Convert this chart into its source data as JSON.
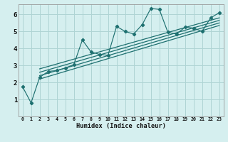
{
  "title": "",
  "xlabel": "Humidex (Indice chaleur)",
  "ylabel": "",
  "bg_color": "#d5efef",
  "grid_color": "#aed4d4",
  "line_color": "#1e7070",
  "xlim": [
    -0.5,
    23.5
  ],
  "ylim": [
    0,
    6.6
  ],
  "xtick_vals": [
    0,
    1,
    2,
    3,
    4,
    5,
    6,
    7,
    8,
    9,
    10,
    11,
    12,
    13,
    14,
    15,
    16,
    17,
    18,
    19,
    20,
    21,
    22,
    23
  ],
  "xtick_labels": [
    "0",
    "1",
    "2",
    "3",
    "4",
    "5",
    "6",
    "7",
    "8",
    "9",
    "10",
    "11",
    "12",
    "13",
    "14",
    "15",
    "16",
    "17",
    "18",
    "19",
    "20",
    "21",
    "22",
    "23"
  ],
  "ytick_vals": [
    1,
    2,
    3,
    4,
    5,
    6
  ],
  "ytick_labels": [
    "1",
    "2",
    "3",
    "4",
    "5",
    "6"
  ],
  "main_x": [
    0,
    1,
    2,
    3,
    4,
    5,
    6,
    7,
    8,
    9,
    10,
    11,
    12,
    13,
    14,
    15,
    16,
    17,
    18,
    19,
    20,
    21,
    22,
    23
  ],
  "main_y": [
    1.75,
    0.8,
    2.3,
    2.65,
    2.7,
    2.85,
    3.05,
    4.5,
    3.8,
    3.65,
    3.6,
    5.3,
    5.0,
    4.85,
    5.4,
    6.35,
    6.3,
    4.95,
    4.85,
    5.25,
    5.2,
    5.0,
    5.8,
    6.1
  ],
  "reg_lines": [
    [
      2,
      23,
      2.2,
      5.35
    ],
    [
      2,
      23,
      2.4,
      5.5
    ],
    [
      2,
      23,
      2.6,
      5.65
    ],
    [
      2,
      23,
      2.8,
      5.8
    ]
  ]
}
